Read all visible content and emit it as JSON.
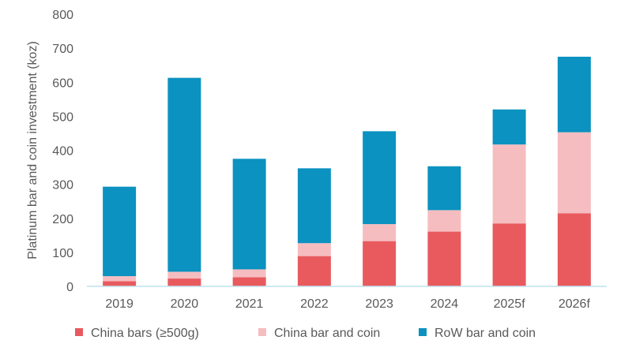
{
  "chart_data": {
    "type": "bar",
    "stacked": true,
    "title": "",
    "xlabel": "",
    "ylabel": "Platinum bar and coin investment (koz)",
    "ylim": [
      0,
      800
    ],
    "yticks": [
      0,
      100,
      200,
      300,
      400,
      500,
      600,
      700,
      800
    ],
    "categories": [
      "2019",
      "2020",
      "2021",
      "2022",
      "2023",
      "2024",
      "2025f",
      "2026f"
    ],
    "series": [
      {
        "name": "China bars (≥500g)",
        "color": "#e85a5e",
        "values": [
          15,
          23,
          27,
          89,
          133,
          161,
          185,
          215
        ]
      },
      {
        "name": "China bar and coin",
        "color": "#f6bdc0",
        "values": [
          15,
          20,
          23,
          38,
          50,
          63,
          232,
          238
        ]
      },
      {
        "name": "RoW bar and coin",
        "color": "#0b92c0",
        "values": [
          263,
          570,
          325,
          220,
          273,
          129,
          103,
          222
        ]
      }
    ],
    "legend_position": "bottom",
    "grid": false
  }
}
